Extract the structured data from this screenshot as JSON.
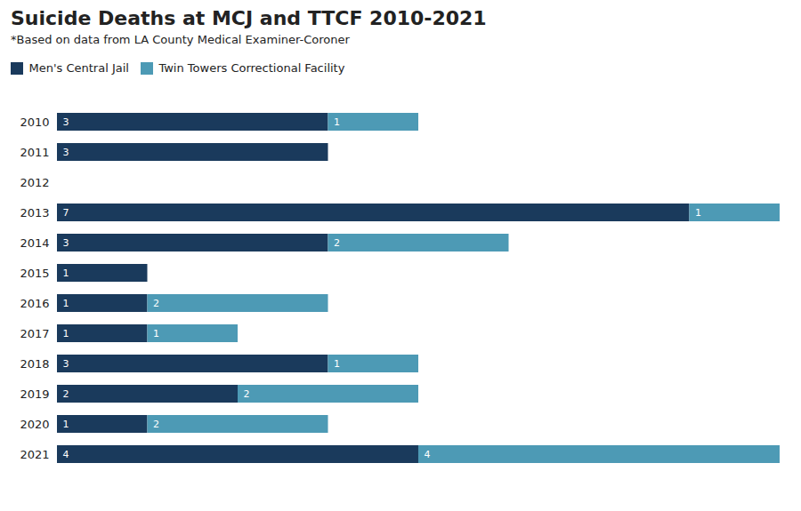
{
  "chart_data": {
    "type": "bar",
    "orientation": "horizontal",
    "stacked": true,
    "title": "Suicide Deaths at MCJ and TTCF 2010-2021",
    "subtitle": "*Based on data from LA County Medical Examiner-Coroner",
    "categories": [
      "2010",
      "2011",
      "2012",
      "2013",
      "2014",
      "2015",
      "2016",
      "2017",
      "2018",
      "2019",
      "2020",
      "2021"
    ],
    "series": [
      {
        "name": "Men's Central Jail",
        "color": "#1a3a5c",
        "values": [
          3,
          3,
          0,
          7,
          3,
          1,
          1,
          1,
          3,
          2,
          1,
          4
        ]
      },
      {
        "name": "Twin Towers Correctional Facility",
        "color": "#4d9ab5",
        "values": [
          1,
          0,
          0,
          1,
          2,
          0,
          2,
          1,
          1,
          2,
          2,
          4
        ]
      }
    ],
    "xlim": [
      0,
      8.02
    ],
    "data_labels": true,
    "tick_labels": "y",
    "grid": false,
    "legend": "upper left"
  }
}
